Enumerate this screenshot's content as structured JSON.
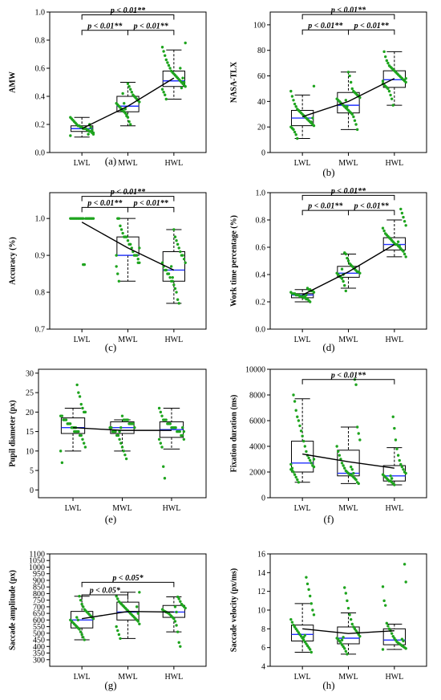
{
  "chart_data": [
    {
      "type": "box",
      "panel_label": "(a)",
      "ylabel": "AMW",
      "categories": [
        "LWL",
        "MWL",
        "HWL"
      ],
      "ylim": [
        0,
        1.0
      ],
      "yticks": [
        0,
        0.2,
        0.4,
        0.6,
        0.8,
        1.0
      ],
      "ytick_labels": [
        "0.0",
        "0.2",
        "0.4",
        "0.6",
        "0.8",
        "1.0"
      ],
      "boxes": [
        {
          "min": 0.11,
          "q1": 0.15,
          "median": 0.17,
          "q3": 0.19,
          "max": 0.25
        },
        {
          "min": 0.19,
          "q1": 0.29,
          "median": 0.33,
          "q3": 0.4,
          "max": 0.5
        },
        {
          "min": 0.38,
          "q1": 0.47,
          "median": 0.51,
          "q3": 0.58,
          "max": 0.73
        }
      ],
      "trend": [
        0.17,
        0.33,
        0.53
      ],
      "points": [
        [
          0.12,
          0.13,
          0.14,
          0.15,
          0.15,
          0.16,
          0.16,
          0.17,
          0.17,
          0.17,
          0.18,
          0.18,
          0.19,
          0.19,
          0.2,
          0.21,
          0.22,
          0.23,
          0.24,
          0.25,
          0.14,
          0.16,
          0.18,
          0.2,
          0.13
        ],
        [
          0.2,
          0.22,
          0.25,
          0.27,
          0.28,
          0.29,
          0.3,
          0.31,
          0.32,
          0.33,
          0.34,
          0.35,
          0.36,
          0.37,
          0.38,
          0.39,
          0.4,
          0.41,
          0.43,
          0.45,
          0.47,
          0.49,
          0.26,
          0.31,
          0.35,
          0.42,
          0.3
        ],
        [
          0.38,
          0.41,
          0.43,
          0.45,
          0.47,
          0.48,
          0.49,
          0.5,
          0.51,
          0.52,
          0.53,
          0.54,
          0.55,
          0.56,
          0.57,
          0.58,
          0.6,
          0.62,
          0.64,
          0.66,
          0.69,
          0.72,
          0.75,
          0.78,
          0.5,
          0.53,
          0.46,
          0.6
        ]
      ],
      "brackets": [
        {
          "from": 0,
          "to": 2,
          "level": 0.98,
          "label": "p < 0.01**"
        },
        {
          "from": 0,
          "to": 1,
          "level": 0.87,
          "label": "p < 0.01**"
        },
        {
          "from": 1,
          "to": 2,
          "level": 0.87,
          "label": "p < 0.01**"
        }
      ]
    },
    {
      "type": "box",
      "panel_label": "(b)",
      "ylabel": "NASA-TLX",
      "categories": [
        "LWL",
        "MWL",
        "HWL"
      ],
      "ylim": [
        0,
        110
      ],
      "yticks": [
        0,
        20,
        40,
        60,
        80,
        100
      ],
      "ytick_labels": [
        "0",
        "20",
        "40",
        "60",
        "80",
        "100"
      ],
      "boxes": [
        {
          "min": 11,
          "q1": 21,
          "median": 27,
          "q3": 33,
          "max": 45
        },
        {
          "min": 18,
          "q1": 31,
          "median": 37,
          "q3": 47,
          "max": 63
        },
        {
          "min": 37,
          "q1": 51,
          "median": 57,
          "q3": 64,
          "max": 79
        }
      ],
      "trend": [
        28,
        40,
        58
      ],
      "points": [
        [
          11,
          14,
          16,
          18,
          19,
          20,
          21,
          22,
          23,
          24,
          25,
          26,
          27,
          28,
          29,
          30,
          31,
          32,
          33,
          34,
          36,
          38,
          41,
          44,
          48,
          52,
          27,
          24
        ],
        [
          18,
          22,
          25,
          28,
          30,
          31,
          32,
          33,
          34,
          35,
          36,
          37,
          38,
          39,
          40,
          41,
          42,
          43,
          44,
          45,
          46,
          47,
          48,
          50,
          55,
          60,
          63,
          36,
          41
        ],
        [
          37,
          42,
          45,
          48,
          50,
          51,
          52,
          53,
          54,
          55,
          56,
          57,
          58,
          59,
          60,
          61,
          62,
          63,
          64,
          65,
          66,
          67,
          68,
          70,
          72,
          75,
          79,
          56,
          58
        ]
      ],
      "brackets": [
        {
          "from": 0,
          "to": 2,
          "level": 108,
          "label": "p < 0.01**"
        },
        {
          "from": 0,
          "to": 1,
          "level": 96,
          "label": "p < 0.01**"
        },
        {
          "from": 1,
          "to": 2,
          "level": 96,
          "label": "p < 0.01**"
        }
      ]
    },
    {
      "type": "box",
      "panel_label": "(c)",
      "ylabel": "Accuracy (%)",
      "categories": [
        "LWL",
        "MWL",
        "HWL"
      ],
      "ylim": [
        0.7,
        1.07
      ],
      "yticks": [
        0.7,
        0.8,
        0.9,
        1.0
      ],
      "ytick_labels": [
        "0.7",
        "0.8",
        "0.9",
        "1.0"
      ],
      "boxes": [
        {
          "min": 1.0,
          "q1": 1.0,
          "median": 1.0,
          "q3": 1.0,
          "max": 1.0
        },
        {
          "min": 0.83,
          "q1": 0.9,
          "median": 0.9,
          "q3": 0.95,
          "max": 1.0
        },
        {
          "min": 0.77,
          "q1": 0.83,
          "median": 0.86,
          "q3": 0.91,
          "max": 0.97
        }
      ],
      "trend": [
        0.99,
        0.92,
        0.86
      ],
      "points": [
        [
          1.0,
          1.0,
          1.0,
          1.0,
          1.0,
          1.0,
          1.0,
          1.0,
          1.0,
          1.0,
          1.0,
          1.0,
          1.0,
          1.0,
          1.0,
          1.0,
          1.0,
          1.0,
          0.875,
          0.875
        ],
        [
          0.83,
          0.85,
          0.87,
          0.88,
          0.89,
          0.9,
          0.9,
          0.9,
          0.91,
          0.92,
          0.93,
          0.93,
          0.94,
          0.95,
          0.95,
          0.95,
          0.96,
          0.97,
          0.98,
          1.0,
          1.0,
          0.9,
          0.92,
          0.88
        ],
        [
          0.77,
          0.78,
          0.8,
          0.81,
          0.82,
          0.83,
          0.83,
          0.84,
          0.85,
          0.85,
          0.86,
          0.86,
          0.87,
          0.88,
          0.88,
          0.89,
          0.9,
          0.9,
          0.91,
          0.92,
          0.93,
          0.94,
          0.95,
          0.97,
          0.84,
          0.87
        ]
      ],
      "brackets": [
        {
          "from": 0,
          "to": 2,
          "level": 1.06,
          "label": "p < 0.01**"
        },
        {
          "from": 0,
          "to": 1,
          "level": 1.03,
          "label": "p < 0.01**"
        },
        {
          "from": 1,
          "to": 2,
          "level": 1.03,
          "label": "p < 0.01**"
        }
      ]
    },
    {
      "type": "box",
      "panel_label": "(d)",
      "ylabel": "Work time percentage (%)",
      "categories": [
        "LWL",
        "MWL",
        "HWL"
      ],
      "ylim": [
        0,
        1.0
      ],
      "yticks": [
        0,
        0.2,
        0.4,
        0.6,
        0.8,
        1.0
      ],
      "ytick_labels": [
        "0.0",
        "0.2",
        "0.4",
        "0.6",
        "0.8",
        "1.0"
      ],
      "boxes": [
        {
          "min": 0.2,
          "q1": 0.23,
          "median": 0.25,
          "q3": 0.26,
          "max": 0.29
        },
        {
          "min": 0.3,
          "q1": 0.38,
          "median": 0.41,
          "q3": 0.46,
          "max": 0.55
        },
        {
          "min": 0.53,
          "q1": 0.58,
          "median": 0.62,
          "q3": 0.67,
          "max": 0.8
        }
      ],
      "trend": [
        0.25,
        0.42,
        0.62
      ],
      "points": [
        [
          0.2,
          0.21,
          0.22,
          0.22,
          0.23,
          0.23,
          0.24,
          0.24,
          0.24,
          0.25,
          0.25,
          0.25,
          0.26,
          0.26,
          0.26,
          0.27,
          0.27,
          0.28,
          0.28,
          0.29,
          0.29,
          0.3,
          0.25,
          0.24
        ],
        [
          0.28,
          0.32,
          0.35,
          0.37,
          0.38,
          0.39,
          0.4,
          0.41,
          0.41,
          0.42,
          0.42,
          0.43,
          0.44,
          0.45,
          0.46,
          0.47,
          0.48,
          0.5,
          0.52,
          0.55,
          0.56,
          0.4,
          0.44
        ],
        [
          0.53,
          0.55,
          0.57,
          0.58,
          0.59,
          0.6,
          0.61,
          0.62,
          0.62,
          0.63,
          0.64,
          0.65,
          0.66,
          0.67,
          0.68,
          0.69,
          0.7,
          0.72,
          0.74,
          0.76,
          0.79,
          0.82,
          0.85,
          0.88,
          0.61,
          0.64
        ]
      ],
      "brackets": [
        {
          "from": 0,
          "to": 2,
          "level": 0.98,
          "label": "p < 0.01**"
        },
        {
          "from": 0,
          "to": 1,
          "level": 0.87,
          "label": "p < 0.01**"
        },
        {
          "from": 1,
          "to": 2,
          "level": 0.87,
          "label": "p < 0.01**"
        }
      ]
    },
    {
      "type": "box",
      "panel_label": "(e)",
      "ylabel": "Pupil diameter (px)",
      "categories": [
        "LWL",
        "MWL",
        "HWL"
      ],
      "ylim": [
        -2,
        31
      ],
      "yticks": [
        0,
        5,
        10,
        15,
        20,
        25,
        30
      ],
      "ytick_labels": [
        "0",
        "5",
        "10",
        "15",
        "20",
        "25",
        "30"
      ],
      "boxes": [
        {
          "min": 10,
          "q1": 14.5,
          "median": 16,
          "q3": 18.5,
          "max": 21
        },
        {
          "min": 10,
          "q1": 14.5,
          "median": 16,
          "q3": 17.5,
          "max": 18
        },
        {
          "min": 10.5,
          "q1": 13.5,
          "median": 15.5,
          "q3": 17.5,
          "max": 21
        }
      ],
      "trend": [
        16,
        15.3,
        15.3
      ],
      "points": [
        [
          7,
          10,
          11,
          12,
          13,
          14,
          14,
          15,
          15,
          15,
          16,
          16,
          16,
          17,
          17,
          17,
          18,
          18,
          18,
          19,
          19,
          20,
          20,
          21,
          22,
          24,
          25,
          27,
          16,
          15
        ],
        [
          8,
          9,
          10,
          11,
          12,
          13,
          14,
          14,
          15,
          15,
          15,
          16,
          16,
          16,
          17,
          17,
          17,
          17,
          18,
          18,
          18,
          18,
          19,
          16,
          15,
          14
        ],
        [
          3,
          6,
          11,
          12,
          13,
          13,
          14,
          14,
          15,
          15,
          15,
          16,
          16,
          16,
          16,
          17,
          17,
          17,
          18,
          18,
          18,
          19,
          20,
          21,
          15,
          16
        ]
      ],
      "brackets": []
    },
    {
      "type": "box",
      "panel_label": "(f)",
      "ylabel": "Fixation duration (ms)",
      "categories": [
        "LWL",
        "MWL",
        "HWL"
      ],
      "ylim": [
        0,
        10000
      ],
      "yticks": [
        0,
        2000,
        4000,
        6000,
        8000,
        10000
      ],
      "ytick_labels": [
        "0",
        "2000",
        "4000",
        "6000",
        "8000",
        "10000"
      ],
      "boxes": [
        {
          "min": 1200,
          "q1": 2000,
          "median": 2700,
          "q3": 4400,
          "max": 7700
        },
        {
          "min": 1100,
          "q1": 1700,
          "median": 1900,
          "q3": 3700,
          "max": 5500
        },
        {
          "min": 1000,
          "q1": 1300,
          "median": 1700,
          "q3": 2500,
          "max": 3900
        }
      ],
      "trend": [
        3400,
        2800,
        2300
      ],
      "points": [
        [
          1200,
          1400,
          1600,
          1800,
          2000,
          2100,
          2200,
          2400,
          2500,
          2700,
          2900,
          3100,
          3300,
          3600,
          4000,
          4400,
          4800,
          5200,
          5600,
          6000,
          6300,
          6800,
          7500,
          8000,
          2300,
          2600,
          3000
        ],
        [
          1100,
          1200,
          1400,
          1500,
          1600,
          1700,
          1800,
          1800,
          1900,
          2000,
          2100,
          2300,
          2500,
          2700,
          3000,
          3300,
          3600,
          4000,
          4500,
          5000,
          5500,
          8800,
          9200,
          1900,
          2200,
          2400
        ],
        [
          1000,
          1100,
          1200,
          1300,
          1300,
          1400,
          1500,
          1600,
          1700,
          1800,
          1900,
          2000,
          2200,
          2400,
          2600,
          2900,
          3300,
          3800,
          4500,
          5400,
          6300,
          1500,
          1700
        ]
      ],
      "brackets": [
        {
          "from": 0,
          "to": 2,
          "level": 9200,
          "label": "p < 0.01**"
        }
      ]
    },
    {
      "type": "box",
      "panel_label": "(g)",
      "ylabel": "Saccade amplitude (px)",
      "categories": [
        "LWL",
        "MWL",
        "HWL"
      ],
      "ylim": [
        250,
        1100
      ],
      "yticks": [
        300,
        350,
        400,
        450,
        500,
        550,
        600,
        650,
        700,
        750,
        800,
        850,
        900,
        950,
        1000,
        1050,
        1100
      ],
      "ytick_labels": [
        "300",
        "350",
        "400",
        "450",
        "500",
        "550",
        "600",
        "650",
        "700",
        "750",
        "800",
        "850",
        "900",
        "950",
        "1000",
        "1050",
        "1100"
      ],
      "boxes": [
        {
          "min": 450,
          "q1": 540,
          "median": 600,
          "q3": 665,
          "max": 780
        },
        {
          "min": 460,
          "q1": 600,
          "median": 660,
          "q3": 735,
          "max": 810
        },
        {
          "min": 510,
          "q1": 620,
          "median": 660,
          "q3": 710,
          "max": 775
        }
      ],
      "trend": [
        610,
        665,
        660
      ],
      "points": [
        [
          450,
          470,
          490,
          510,
          530,
          540,
          550,
          560,
          570,
          580,
          590,
          600,
          610,
          620,
          630,
          640,
          650,
          660,
          670,
          680,
          700,
          720,
          750,
          780,
          600,
          620
        ],
        [
          460,
          490,
          520,
          550,
          570,
          590,
          600,
          610,
          620,
          630,
          640,
          650,
          660,
          670,
          680,
          690,
          700,
          710,
          720,
          730,
          740,
          760,
          780,
          810,
          650,
          700
        ],
        [
          400,
          430,
          510,
          560,
          590,
          610,
          620,
          630,
          640,
          650,
          655,
          660,
          665,
          670,
          680,
          690,
          700,
          710,
          720,
          740,
          760,
          775,
          660,
          700
        ]
      ],
      "brackets": [
        {
          "from": 0,
          "to": 2,
          "level": 885,
          "label": "p < 0.05*"
        },
        {
          "from": 0,
          "to": 1,
          "level": 790,
          "label": "p < 0.05*"
        }
      ]
    },
    {
      "type": "box",
      "panel_label": "(h)",
      "ylabel": "Saccade velocity (px/ms)",
      "categories": [
        "LWL",
        "MWL",
        "HWL"
      ],
      "ylim": [
        4,
        16
      ],
      "yticks": [
        4,
        6,
        8,
        10,
        12,
        14,
        16
      ],
      "ytick_labels": [
        "4",
        "6",
        "8",
        "10",
        "12",
        "14",
        "16"
      ],
      "boxes": [
        {
          "min": 5.5,
          "q1": 6.7,
          "median": 7.4,
          "q3": 8.4,
          "max": 10.7
        },
        {
          "min": 5.3,
          "q1": 6.4,
          "median": 7.0,
          "q3": 8.2,
          "max": 9.7
        },
        {
          "min": 5.8,
          "q1": 6.3,
          "median": 6.8,
          "q3": 8.0,
          "max": 8.5
        }
      ],
      "trend": [
        8.0,
        7.5,
        7.8
      ],
      "points": [
        [
          5.5,
          5.8,
          6.0,
          6.2,
          6.4,
          6.6,
          6.8,
          7.0,
          7.2,
          7.4,
          7.6,
          7.8,
          8.0,
          8.2,
          8.4,
          8.7,
          9.0,
          9.5,
          10.0,
          10.7,
          11.5,
          12.2,
          12.8,
          13.5,
          7.3,
          7.1
        ],
        [
          5.3,
          5.6,
          5.9,
          6.1,
          6.3,
          6.5,
          6.7,
          6.9,
          7.0,
          7.2,
          7.4,
          7.6,
          7.8,
          8.0,
          8.2,
          8.5,
          9.0,
          9.5,
          10.2,
          11.0,
          11.8,
          12.4,
          7.1,
          6.8
        ],
        [
          5.8,
          5.9,
          6.0,
          6.1,
          6.2,
          6.3,
          6.4,
          6.5,
          6.6,
          6.8,
          7.0,
          7.2,
          7.5,
          7.8,
          8.0,
          8.3,
          8.6,
          10.5,
          11.0,
          12.5,
          13.0,
          14.9,
          6.7,
          6.9
        ]
      ],
      "brackets": []
    }
  ]
}
